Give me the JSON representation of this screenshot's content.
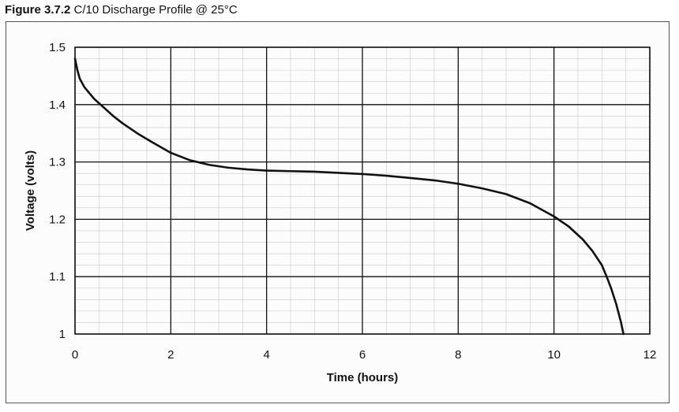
{
  "figure": {
    "label": "Figure 3.7.2",
    "caption": "C/10 Discharge Profile @ 25°C"
  },
  "chart_data": {
    "type": "line",
    "xlabel": "Time (hours)",
    "ylabel": "Voltage (volts)",
    "xlim": [
      0,
      12
    ],
    "ylim": [
      1.0,
      1.5
    ],
    "x_ticks": [
      0,
      2,
      4,
      6,
      8,
      10,
      12
    ],
    "y_ticks": [
      "1",
      "1.1",
      "1.2",
      "1.3",
      "1.4",
      "1.5"
    ],
    "grid": true,
    "minor_grid": true,
    "legend": "none",
    "line_color": "#111111",
    "series": [
      {
        "x": [
          0,
          0.05,
          0.1,
          0.2,
          0.4,
          0.6,
          0.8,
          1.0,
          1.3,
          1.6,
          2.0,
          2.4,
          2.8,
          3.2,
          3.6,
          4.0,
          4.5,
          5.0,
          5.5,
          6.0,
          6.5,
          7.0,
          7.5,
          8.0,
          8.5,
          9.0,
          9.5,
          10.0,
          10.3,
          10.6,
          10.8,
          11.0,
          11.1,
          11.2,
          11.3,
          11.4,
          11.45
        ],
        "y": [
          1.48,
          1.46,
          1.445,
          1.43,
          1.41,
          1.395,
          1.38,
          1.367,
          1.35,
          1.335,
          1.316,
          1.303,
          1.295,
          1.29,
          1.287,
          1.285,
          1.284,
          1.283,
          1.281,
          1.279,
          1.276,
          1.272,
          1.268,
          1.262,
          1.254,
          1.244,
          1.228,
          1.205,
          1.188,
          1.165,
          1.145,
          1.12,
          1.1,
          1.078,
          1.052,
          1.02,
          1.0
        ]
      }
    ]
  }
}
